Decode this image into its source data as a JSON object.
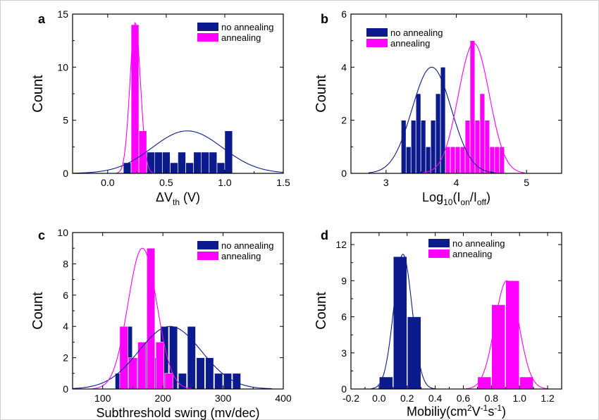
{
  "colors": {
    "no_annealing": "#0b1a8c",
    "annealing": "#ff00ff"
  },
  "chart_data": [
    {
      "panel_label": "a",
      "type": "bar",
      "xlabel": "ΔV",
      "xlabel_sub": "th",
      "xlabel_suffix": " (V)",
      "ylabel": "Count",
      "xlim": [
        -0.3,
        1.5
      ],
      "ylim": [
        0,
        15
      ],
      "xticks": [
        "0.0",
        "0.5",
        "1.0",
        "1.5"
      ],
      "yticks": [
        "0",
        "5",
        "10",
        "15"
      ],
      "xtick_values": [
        0,
        0.5,
        1.0,
        1.5
      ],
      "ytick_values": [
        0,
        5,
        10,
        15
      ],
      "bar_width": 0.066,
      "legend": [
        "no annealing",
        "annealing"
      ],
      "series": [
        {
          "name": "no annealing",
          "color": "#0b1a8c",
          "x": [
            0.167,
            0.233,
            0.3,
            0.367,
            0.433,
            0.5,
            0.567,
            0.633,
            0.7,
            0.767,
            0.833,
            0.9,
            0.967,
            1.033
          ],
          "values": [
            1,
            1,
            2,
            2,
            2,
            2,
            1,
            2,
            1,
            2,
            2,
            2,
            1,
            4
          ],
          "fit": {
            "mu": 0.68,
            "sigma": 0.3,
            "peak": 4
          }
        },
        {
          "name": "annealing",
          "color": "#ff00ff",
          "x": [
            0.233,
            0.3
          ],
          "values": [
            14,
            4
          ],
          "fit": {
            "mu": 0.235,
            "sigma": 0.045,
            "peak": 14.2
          }
        }
      ]
    },
    {
      "panel_label": "b",
      "type": "bar",
      "xlabel": "Log",
      "xlabel_sub": "10",
      "xlabel_suffix": "(I",
      "xlabel_sub2": "on",
      "xlabel_mid": "/I",
      "xlabel_sub3": "off",
      "xlabel_end": ")",
      "ylabel": "Count",
      "xlim": [
        2.5,
        5.5
      ],
      "ylim": [
        0,
        6
      ],
      "xticks": [
        "3",
        "4",
        "5"
      ],
      "yticks": [
        "0",
        "2",
        "4",
        "6"
      ],
      "xtick_values": [
        3,
        4,
        5
      ],
      "ytick_values": [
        0,
        2,
        4,
        6
      ],
      "bar_width": 0.068,
      "legend": [
        "no annealing",
        "annealing"
      ],
      "series": [
        {
          "name": "no annealing",
          "color": "#0b1a8c",
          "x": [
            3.25,
            3.32,
            3.39,
            3.46,
            3.53,
            3.6,
            3.67,
            3.74,
            3.81
          ],
          "values": [
            2,
            1,
            2,
            3,
            2,
            1,
            2,
            3,
            4
          ],
          "fit": {
            "mu": 3.65,
            "sigma": 0.28,
            "peak": 4
          }
        },
        {
          "name": "annealing",
          "color": "#ff00ff",
          "x": [
            3.88,
            3.95,
            4.02,
            4.09,
            4.16,
            4.23,
            4.3,
            4.37,
            4.44,
            4.51,
            4.58,
            4.65
          ],
          "values": [
            1,
            1,
            1,
            1,
            2,
            5,
            2,
            3,
            2,
            1,
            1,
            1
          ],
          "fit": {
            "mu": 4.25,
            "sigma": 0.22,
            "peak": 4.9
          }
        }
      ]
    },
    {
      "panel_label": "c",
      "type": "bar",
      "xlabel": "Subthreshold swing (mv/dec)",
      "ylabel": "Count",
      "xlim": [
        50,
        400
      ],
      "ylim": [
        0,
        10
      ],
      "xticks": [
        "100",
        "200",
        "300",
        "400"
      ],
      "yticks": [
        "0",
        "2",
        "4",
        "6",
        "8",
        "10"
      ],
      "xtick_values": [
        100,
        200,
        300,
        400
      ],
      "ytick_values": [
        0,
        2,
        4,
        6,
        8,
        10
      ],
      "bar_width": 13.5,
      "legend": [
        "no annealing",
        "annealing"
      ],
      "series": [
        {
          "name": "no annealing",
          "color": "#0b1a8c",
          "x": [
            127.5,
            142.5,
            157.5,
            172.5,
            187.5,
            202.5,
            217.5,
            232.5,
            247.5,
            262.5,
            277.5,
            292.5,
            307.5,
            322.5
          ],
          "values": [
            1,
            4,
            2,
            3,
            2,
            4,
            4,
            1,
            4,
            2,
            2,
            1,
            1,
            1
          ],
          "fit": {
            "mu": 212,
            "sigma": 52,
            "peak": 4
          }
        },
        {
          "name": "annealing",
          "color": "#ff00ff",
          "x": [
            135,
            150,
            165,
            180,
            195,
            210
          ],
          "values": [
            4,
            2,
            3,
            9,
            3,
            1
          ],
          "fit": {
            "mu": 166,
            "sigma": 24,
            "peak": 9
          }
        }
      ]
    },
    {
      "panel_label": "d",
      "type": "bar",
      "xlabel": "Mobiliy(cm",
      "xlabel_sup": "2",
      "xlabel_suffix": "V",
      "xlabel_sup2": "-1",
      "xlabel_mid": "s",
      "xlabel_sup3": "-1",
      "xlabel_end": ")",
      "ylabel": "Count",
      "xlim": [
        -0.2,
        1.3
      ],
      "ylim": [
        0,
        13
      ],
      "xticks": [
        "-0.2",
        "0.0",
        "0.2",
        "0.4",
        "0.6",
        "0.8",
        "1.0",
        "1.2"
      ],
      "yticks": [
        "0",
        "3",
        "6",
        "9",
        "12"
      ],
      "xtick_values": [
        -0.2,
        0,
        0.2,
        0.4,
        0.6,
        0.8,
        1.0,
        1.2
      ],
      "ytick_values": [
        0,
        3,
        6,
        9,
        12
      ],
      "bar_width": 0.096,
      "legend": [
        "no annealing",
        "annealing"
      ],
      "series": [
        {
          "name": "no annealing",
          "color": "#0b1a8c",
          "x": [
            0.05,
            0.15,
            0.25
          ],
          "values": [
            1,
            11,
            6
          ],
          "fit": {
            "mu": 0.17,
            "sigma": 0.065,
            "peak": 11.2
          }
        },
        {
          "name": "annealing",
          "color": "#ff00ff",
          "x": [
            0.75,
            0.85,
            0.95,
            1.05
          ],
          "values": [
            1,
            7,
            9,
            1
          ],
          "fit": {
            "mu": 0.91,
            "sigma": 0.085,
            "peak": 9
          }
        }
      ]
    }
  ]
}
